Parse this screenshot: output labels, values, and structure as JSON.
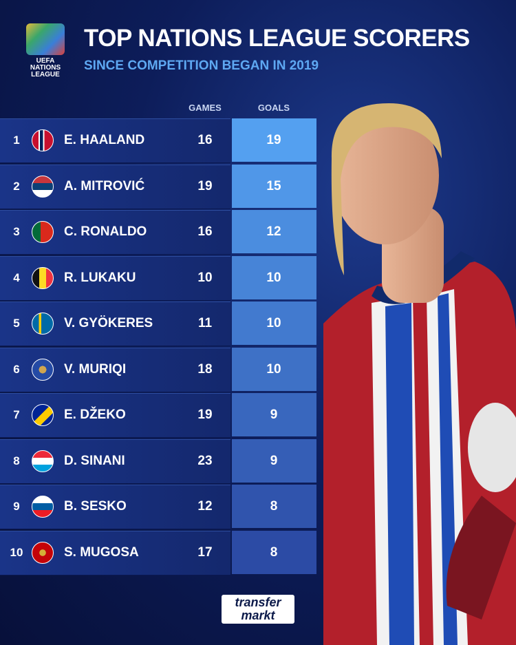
{
  "header": {
    "logo": [
      "UEFA",
      "NATIONS",
      "LEAGUE"
    ],
    "title": "TOP NATIONS LEAGUE SCORERS",
    "subtitle": "SINCE COMPETITION BEGAN IN 2019"
  },
  "table": {
    "columns": [
      "GAMES",
      "GOALS"
    ],
    "rows": [
      {
        "rank": "1",
        "name": "E. HAALAND",
        "games": "16",
        "goals": "19"
      },
      {
        "rank": "2",
        "name": "A. MITROVIĆ",
        "games": "19",
        "goals": "15"
      },
      {
        "rank": "3",
        "name": "C. RONALDO",
        "games": "16",
        "goals": "12"
      },
      {
        "rank": "4",
        "name": "R. LUKAKU",
        "games": "10",
        "goals": "10"
      },
      {
        "rank": "5",
        "name": "V. GYÖKERES",
        "games": "11",
        "goals": "10"
      },
      {
        "rank": "6",
        "name": "V. MURIQI",
        "games": "18",
        "goals": "10"
      },
      {
        "rank": "7",
        "name": "E. DŽEKO",
        "games": "19",
        "goals": "9"
      },
      {
        "rank": "8",
        "name": "D. SINANI",
        "games": "23",
        "goals": "9"
      },
      {
        "rank": "9",
        "name": "B. SESKO",
        "games": "12",
        "goals": "8"
      },
      {
        "rank": "10",
        "name": "S. MUGOSA",
        "games": "17",
        "goals": "8"
      }
    ]
  },
  "footer": {
    "brand": [
      "transfer",
      "markt"
    ]
  }
}
